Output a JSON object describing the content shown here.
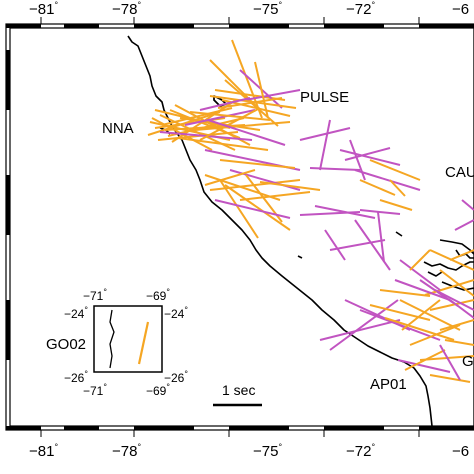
{
  "map": {
    "lon_ticks": [
      "−81",
      "−78",
      "−75",
      "−72",
      "−6"
    ],
    "degree_symbol": "°",
    "station_labels": {
      "nna": "NNA",
      "pulse": "PULSE",
      "cau": "CAU",
      "ap01": "AP01",
      "g_partial": "G"
    },
    "scale_bar": {
      "label": "1 sec",
      "seconds": 1
    },
    "split_colors": {
      "orange": "#f5a623",
      "magenta": "#c154c1",
      "coast": "#000000"
    }
  },
  "inset": {
    "station": "GO02",
    "top_lon": [
      "−71",
      "−69"
    ],
    "bottom_lon": [
      "−71",
      "−69"
    ],
    "left_lat": [
      "−24",
      "−26"
    ],
    "right_lat": [
      "−24",
      "−26"
    ]
  }
}
